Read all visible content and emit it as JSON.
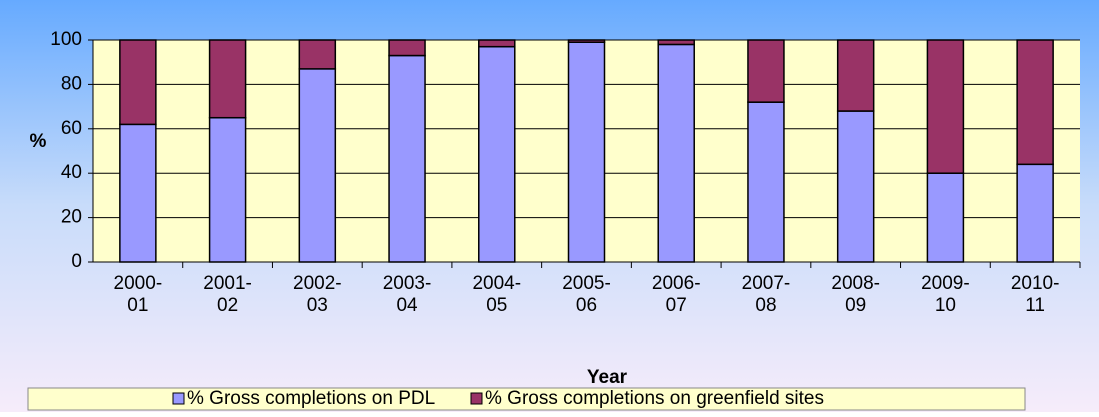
{
  "chart_data": {
    "type": "bar",
    "stacked": true,
    "x_label": "Year",
    "y_label": "%",
    "categories": [
      "2000-01",
      "2001-02",
      "2002-03",
      "2003-04",
      "2004-05",
      "2005-06",
      "2006-07",
      "2007-08",
      "2008-09",
      "2009-10",
      "2010-11"
    ],
    "series": [
      {
        "name": "% Gross completions on PDL",
        "color": "#9999ff",
        "values": [
          62,
          65,
          87,
          93,
          97,
          99,
          98,
          72,
          68,
          40,
          44
        ]
      },
      {
        "name": "% Gross completions on greenfield sites",
        "color": "#993366",
        "values": [
          38,
          35,
          13,
          7,
          3,
          1,
          2,
          28,
          32,
          60,
          56
        ]
      }
    ],
    "ylim": [
      0,
      100
    ],
    "yticks": [
      0,
      20,
      40,
      60,
      80,
      100
    ],
    "grid": true,
    "legend": "bottom"
  }
}
